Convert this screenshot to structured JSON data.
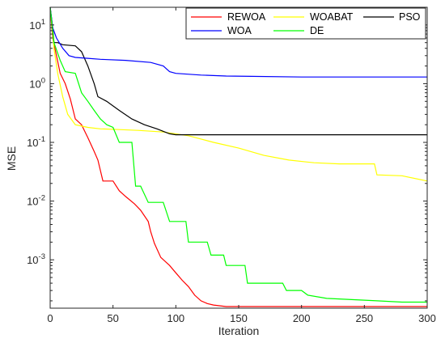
{
  "chart_data": {
    "type": "line",
    "xlabel": "Iteration",
    "ylabel": "MSE",
    "xlim": [
      0,
      300
    ],
    "ylim": [
      0.00015,
      20
    ],
    "y_scale": "log",
    "grid": false,
    "legend_position": "top-right",
    "x_ticks": [
      "0",
      "50",
      "100",
      "150",
      "200",
      "250",
      "300"
    ],
    "y_ticks": [
      {
        "base": "10",
        "exp": "1",
        "value": 10
      },
      {
        "base": "10",
        "exp": "0",
        "value": 1
      },
      {
        "base": "10",
        "exp": "-1",
        "value": 0.1
      },
      {
        "base": "10",
        "exp": "-2",
        "value": 0.01
      },
      {
        "base": "10",
        "exp": "-3",
        "value": 0.001
      }
    ],
    "series": [
      {
        "name": "REWOA",
        "color": "#ff0000",
        "points": [
          [
            0,
            20
          ],
          [
            2,
            6
          ],
          [
            5,
            3
          ],
          [
            8,
            1.5
          ],
          [
            12,
            1
          ],
          [
            16,
            0.55
          ],
          [
            20,
            0.25
          ],
          [
            25,
            0.2
          ],
          [
            30,
            0.12
          ],
          [
            35,
            0.07
          ],
          [
            38,
            0.05
          ],
          [
            42,
            0.022
          ],
          [
            50,
            0.022
          ],
          [
            55,
            0.015
          ],
          [
            60,
            0.012
          ],
          [
            67,
            0.009
          ],
          [
            72,
            0.007
          ],
          [
            78,
            0.0045
          ],
          [
            80,
            0.003
          ],
          [
            83,
            0.0019
          ],
          [
            88,
            0.0011
          ],
          [
            95,
            0.0008
          ],
          [
            100,
            0.0006
          ],
          [
            105,
            0.00045
          ],
          [
            110,
            0.00035
          ],
          [
            115,
            0.00025
          ],
          [
            120,
            0.0002
          ],
          [
            125,
            0.00018
          ],
          [
            130,
            0.00017
          ],
          [
            140,
            0.00016
          ],
          [
            160,
            0.00016
          ],
          [
            300,
            0.00016
          ]
        ]
      },
      {
        "name": "WOABAT",
        "color": "#ffff00",
        "points": [
          [
            0,
            20
          ],
          [
            3,
            4
          ],
          [
            6,
            1.5
          ],
          [
            10,
            0.6
          ],
          [
            14,
            0.3
          ],
          [
            20,
            0.2
          ],
          [
            30,
            0.18
          ],
          [
            40,
            0.17
          ],
          [
            55,
            0.165
          ],
          [
            70,
            0.16
          ],
          [
            90,
            0.15
          ],
          [
            110,
            0.13
          ],
          [
            130,
            0.1
          ],
          [
            150,
            0.08
          ],
          [
            170,
            0.06
          ],
          [
            190,
            0.05
          ],
          [
            210,
            0.045
          ],
          [
            230,
            0.043
          ],
          [
            258,
            0.043
          ],
          [
            260,
            0.028
          ],
          [
            280,
            0.027
          ],
          [
            300,
            0.022
          ]
        ]
      },
      {
        "name": "PSO",
        "color": "#000000",
        "points": [
          [
            0,
            20
          ],
          [
            2,
            9
          ],
          [
            3,
            5
          ],
          [
            6,
            5
          ],
          [
            10,
            4.6
          ],
          [
            20,
            4.4
          ],
          [
            25,
            3.5
          ],
          [
            30,
            2
          ],
          [
            35,
            1
          ],
          [
            38,
            0.6
          ],
          [
            45,
            0.5
          ],
          [
            55,
            0.35
          ],
          [
            65,
            0.25
          ],
          [
            75,
            0.2
          ],
          [
            85,
            0.17
          ],
          [
            95,
            0.14
          ],
          [
            100,
            0.135
          ],
          [
            150,
            0.135
          ],
          [
            300,
            0.135
          ]
        ]
      },
      {
        "name": "WOA",
        "color": "#0000ff",
        "points": [
          [
            0,
            20
          ],
          [
            2,
            9
          ],
          [
            5,
            6
          ],
          [
            10,
            4
          ],
          [
            15,
            3
          ],
          [
            20,
            2.8
          ],
          [
            30,
            2.7
          ],
          [
            40,
            2.6
          ],
          [
            60,
            2.5
          ],
          [
            80,
            2.3
          ],
          [
            90,
            2
          ],
          [
            95,
            1.6
          ],
          [
            100,
            1.5
          ],
          [
            120,
            1.4
          ],
          [
            140,
            1.35
          ],
          [
            160,
            1.33
          ],
          [
            200,
            1.3
          ],
          [
            300,
            1.3
          ]
        ]
      },
      {
        "name": "DE",
        "color": "#00ff00",
        "points": [
          [
            0,
            20
          ],
          [
            3,
            5
          ],
          [
            8,
            2.5
          ],
          [
            12,
            1.6
          ],
          [
            20,
            1.5
          ],
          [
            25,
            0.7
          ],
          [
            30,
            0.5
          ],
          [
            35,
            0.35
          ],
          [
            40,
            0.25
          ],
          [
            45,
            0.2
          ],
          [
            50,
            0.18
          ],
          [
            55,
            0.1
          ],
          [
            60,
            0.1
          ],
          [
            65,
            0.1
          ],
          [
            68,
            0.018
          ],
          [
            72,
            0.018
          ],
          [
            78,
            0.0095
          ],
          [
            90,
            0.0095
          ],
          [
            95,
            0.0045
          ],
          [
            108,
            0.0045
          ],
          [
            110,
            0.002
          ],
          [
            125,
            0.002
          ],
          [
            128,
            0.0012
          ],
          [
            138,
            0.0012
          ],
          [
            140,
            0.0008
          ],
          [
            155,
            0.0008
          ],
          [
            157,
            0.0004
          ],
          [
            185,
            0.0004
          ],
          [
            188,
            0.0003
          ],
          [
            200,
            0.0003
          ],
          [
            205,
            0.00025
          ],
          [
            220,
            0.00022
          ],
          [
            240,
            0.00021
          ],
          [
            260,
            0.0002
          ],
          [
            280,
            0.00019
          ],
          [
            300,
            0.00019
          ]
        ]
      }
    ]
  }
}
